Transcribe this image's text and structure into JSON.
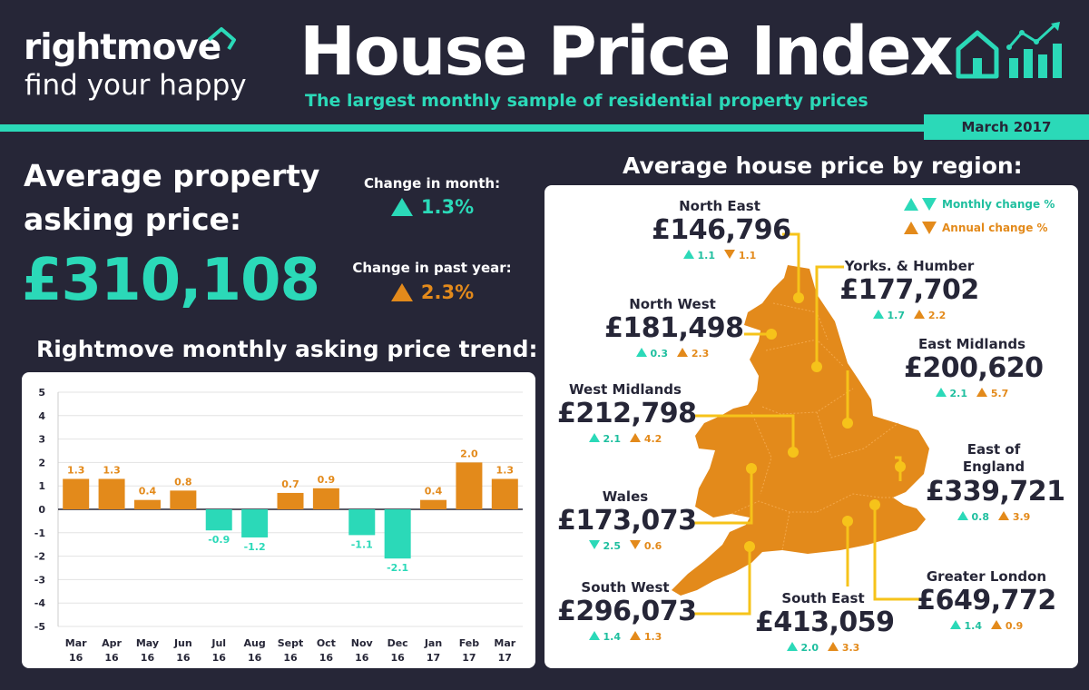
{
  "header": {
    "brand": "rightmove",
    "tagline": "find your happy",
    "title": "House Price Index",
    "subtitle": "The largest monthly sample of residential property prices",
    "date": "March 2017"
  },
  "summary": {
    "avg_label": "Average property asking price:",
    "avg_value": "£310,108",
    "month_label": "Change in month:",
    "month_value": "1.3%",
    "year_label": "Change in past year:",
    "year_value": "2.3%"
  },
  "trend_title": "Rightmove monthly asking price trend:",
  "map_title": "Average house price by region:",
  "legend": {
    "monthly": "Monthly change %",
    "annual": "Annual change %"
  },
  "regions": [
    {
      "name": "North East",
      "price": "£146,796",
      "monthly": "1.1",
      "monthly_dir": "up",
      "annual": "1.1",
      "annual_dir": "down"
    },
    {
      "name": "Yorks. & Humber",
      "price": "£177,702",
      "monthly": "1.7",
      "monthly_dir": "up",
      "annual": "2.2",
      "annual_dir": "up"
    },
    {
      "name": "North West",
      "price": "£181,498",
      "monthly": "0.3",
      "monthly_dir": "up",
      "annual": "2.3",
      "annual_dir": "up"
    },
    {
      "name": "East Midlands",
      "price": "£200,620",
      "monthly": "2.1",
      "monthly_dir": "up",
      "annual": "5.7",
      "annual_dir": "up"
    },
    {
      "name": "West Midlands",
      "price": "£212,798",
      "monthly": "2.1",
      "monthly_dir": "up",
      "annual": "4.2",
      "annual_dir": "up"
    },
    {
      "name": "East of England",
      "price": "£339,721",
      "monthly": "0.8",
      "monthly_dir": "up",
      "annual": "3.9",
      "annual_dir": "up"
    },
    {
      "name": "Wales",
      "price": "£173,073",
      "monthly": "2.5",
      "monthly_dir": "down",
      "annual": "0.6",
      "annual_dir": "down"
    },
    {
      "name": "Greater London",
      "price": "£649,772",
      "monthly": "1.4",
      "monthly_dir": "up",
      "annual": "0.9",
      "annual_dir": "up"
    },
    {
      "name": "South West",
      "price": "£296,073",
      "monthly": "1.4",
      "monthly_dir": "up",
      "annual": "1.3",
      "annual_dir": "up"
    },
    {
      "name": "South East",
      "price": "£413,059",
      "monthly": "2.0",
      "monthly_dir": "up",
      "annual": "3.3",
      "annual_dir": "up"
    }
  ],
  "colors": {
    "background": "#262637",
    "teal": "#2bd9b8",
    "orange": "#e38a1b",
    "yellow": "#f6c31a"
  },
  "chart_data": {
    "type": "bar",
    "title": "Rightmove monthly asking price trend:",
    "categories": [
      "Mar 16",
      "Apr 16",
      "May 16",
      "Jun 16",
      "Jul 16",
      "Aug 16",
      "Sept 16",
      "Oct 16",
      "Nov 16",
      "Dec 16",
      "Jan 17",
      "Feb 17",
      "Mar 17"
    ],
    "values": [
      1.3,
      1.3,
      0.4,
      0.8,
      -0.9,
      -1.2,
      0.7,
      0.9,
      -1.1,
      -2.1,
      0.4,
      2.0,
      1.3
    ],
    "value_labels": [
      "1.3",
      "1.3",
      "0.4",
      "0.8",
      "-0.9",
      "-1.2",
      "0.7",
      "0.9",
      "-1.1",
      "-2.1",
      "0.4",
      "2.0",
      "1.3"
    ],
    "yticks": [
      "5",
      "4",
      "3",
      "2",
      "1",
      "0",
      "-1",
      "-2",
      "-3",
      "-4",
      "-5"
    ],
    "ylim": [
      -5,
      5
    ],
    "grid": "horizontal",
    "positive_color": "#e38a1b",
    "negative_color": "#2bd9b8"
  }
}
